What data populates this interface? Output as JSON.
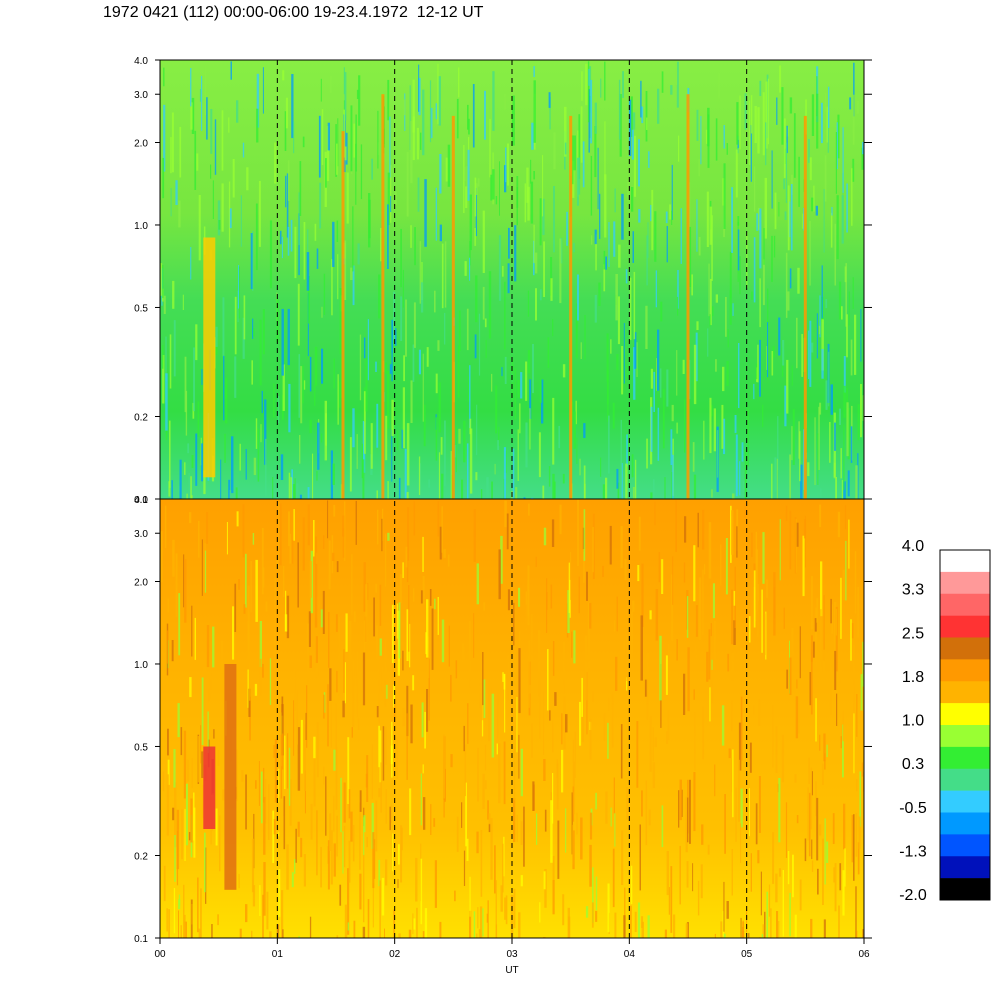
{
  "title": "1972 0421 (112) 00:00-06:00 19-23.4.1972  12-12 UT",
  "chart_data": {
    "type": "heatmap",
    "title": "1972 0421 (112) 00:00-06:00 19-23.4.1972  12-12 UT",
    "xlabel": "UT",
    "ylabel": "",
    "x_ticks": [
      "00",
      "01",
      "02",
      "03",
      "04",
      "05",
      "06"
    ],
    "x_range": [
      0,
      6
    ],
    "y_scale": "log",
    "y_range": [
      0.1,
      4.0
    ],
    "y_ticks": [
      "0.1",
      "0.2",
      "0.5",
      "1.0",
      "2.0",
      "3.0",
      "4.0"
    ],
    "dashed_lines_at_x": [
      1,
      2,
      3,
      4,
      5
    ],
    "panels": [
      {
        "name": "upper",
        "dominant_levels": [
          0.3,
          1.0
        ],
        "features": [
          {
            "x": 0.42,
            "y_range": [
              0.12,
              0.9
            ],
            "level": 1.4
          },
          {
            "x": 1.56,
            "y_range": [
              0.1,
              2.2
            ],
            "level": 1.8
          },
          {
            "x": 1.9,
            "y_range": [
              0.1,
              3.0
            ],
            "level": 1.8
          },
          {
            "x": 2.5,
            "y_range": [
              0.1,
              2.5
            ],
            "level": 1.8
          },
          {
            "x": 3.5,
            "y_range": [
              0.1,
              2.5
            ],
            "level": 1.8
          },
          {
            "x": 4.5,
            "y_range": [
              0.1,
              3.0
            ],
            "level": 1.8
          },
          {
            "x": 5.5,
            "y_range": [
              0.1,
              2.5
            ],
            "level": 1.8
          }
        ]
      },
      {
        "name": "lower",
        "dominant_levels": [
          1.0,
          1.8
        ],
        "features": [
          {
            "x": 0.42,
            "y_range": [
              0.25,
              0.5
            ],
            "level": 2.5
          },
          {
            "x": 0.6,
            "y_range": [
              0.15,
              1.0
            ],
            "level": 2.1
          }
        ]
      }
    ],
    "colorbar": {
      "labels": [
        "4.0",
        "3.3",
        "2.5",
        "1.8",
        "1.0",
        "0.3",
        "-0.5",
        "-1.3",
        "-2.0"
      ],
      "colors": [
        "#ffffff",
        "#ff9999",
        "#ff6666",
        "#ff3333",
        "#d2700a",
        "#ff9900",
        "#ffb300",
        "#ffff00",
        "#99ff33",
        "#33ee33",
        "#44dd88",
        "#33ccff",
        "#0099ff",
        "#0055ff",
        "#0011bb",
        "#000000"
      ]
    }
  }
}
